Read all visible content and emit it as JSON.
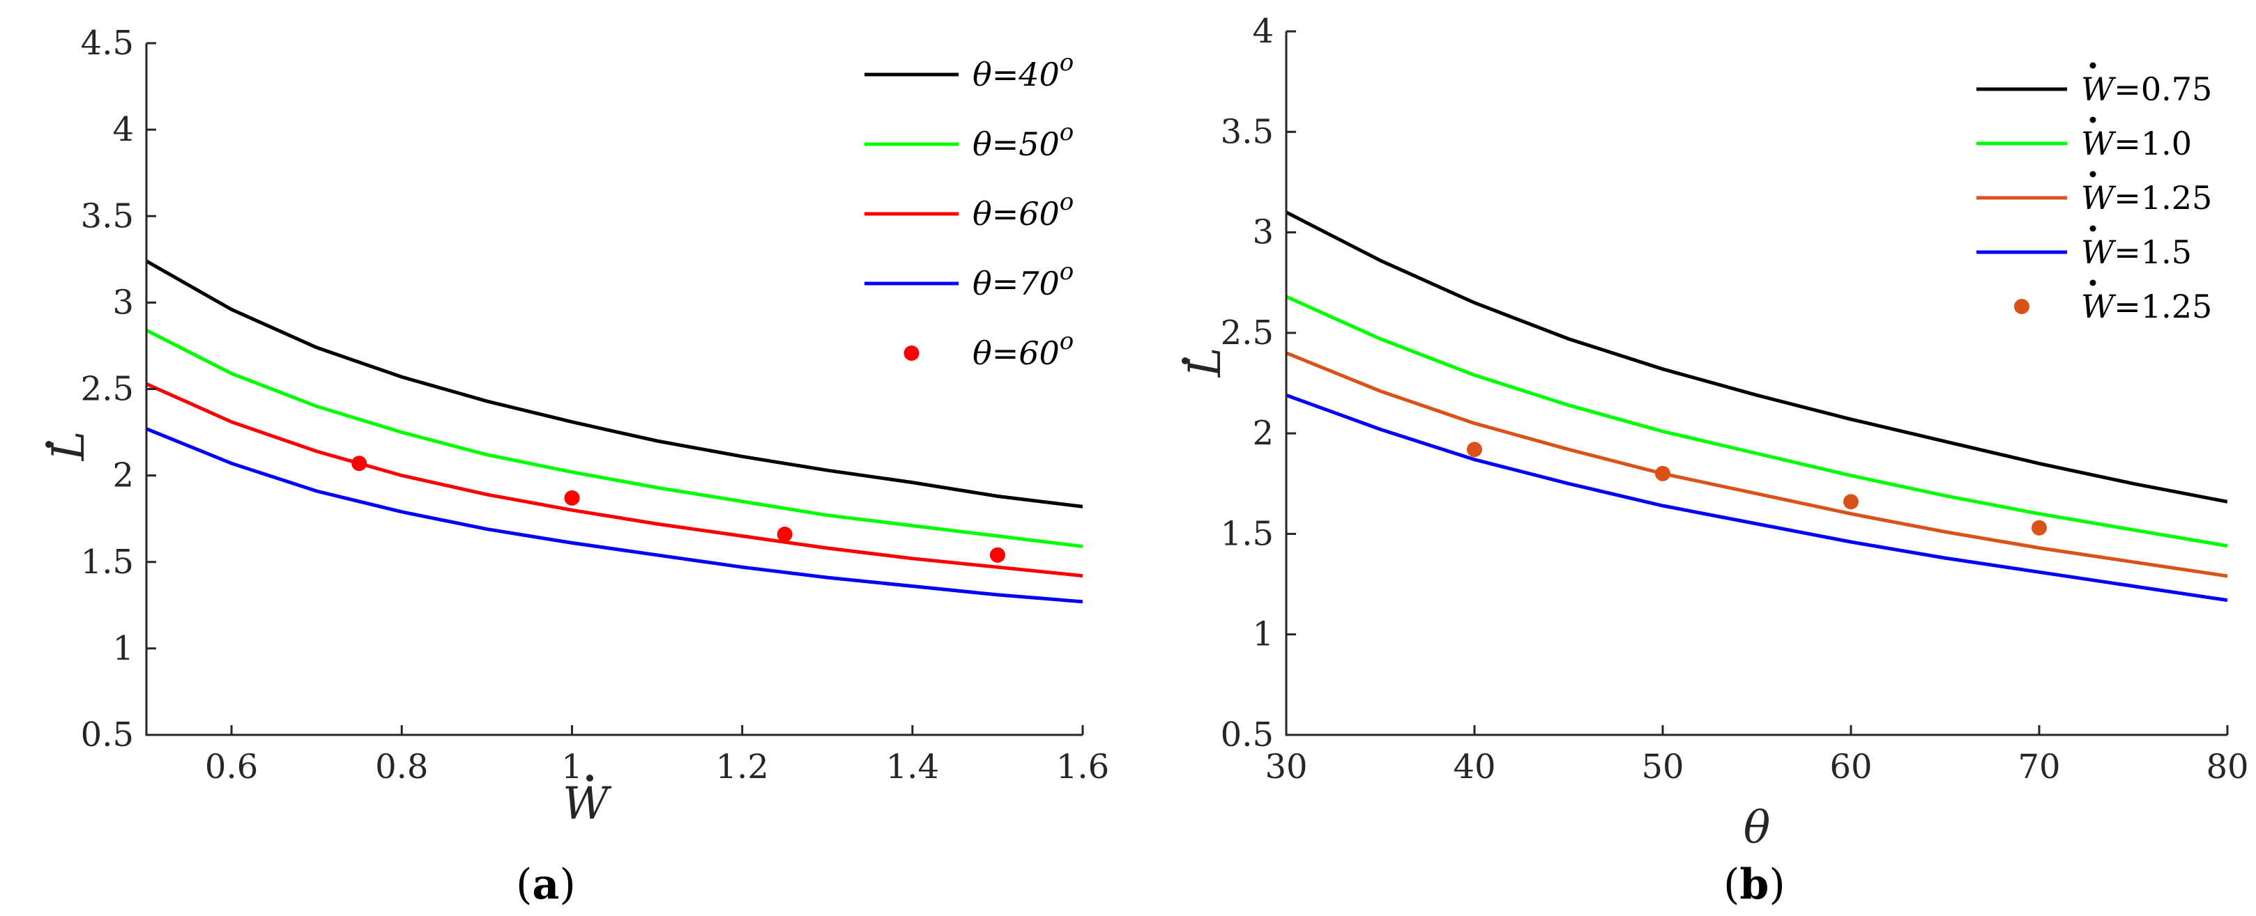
{
  "chart_data": [
    {
      "id": "a",
      "type": "line",
      "caption_letter": "a",
      "xlabel": "W",
      "ylabel": "L",
      "xlim": [
        0.5,
        1.6
      ],
      "ylim": [
        0.5,
        4.5
      ],
      "xticks": [
        0.6,
        0.8,
        1,
        1.2,
        1.4,
        1.6
      ],
      "xtick_labels": [
        "0.6",
        "0.8",
        "1",
        "1.2",
        "1.4",
        "1.6"
      ],
      "yticks": [
        0.5,
        1,
        1.5,
        2,
        2.5,
        3,
        3.5,
        4,
        4.5
      ],
      "ytick_labels": [
        "0.5",
        "1",
        "1.5",
        "2",
        "2.5",
        "3",
        "3.5",
        "4",
        "4.5"
      ],
      "legend_position": "top-right",
      "series": [
        {
          "name": "θ=40",
          "label_var": "θ",
          "label_value": "=40",
          "label_sup": "o",
          "color": "#000000",
          "kind": "line",
          "x": [
            0.5,
            0.6,
            0.7,
            0.8,
            0.9,
            1.0,
            1.1,
            1.2,
            1.3,
            1.4,
            1.5,
            1.6
          ],
          "y": [
            3.24,
            2.96,
            2.74,
            2.57,
            2.43,
            2.31,
            2.2,
            2.11,
            2.03,
            1.96,
            1.88,
            1.82
          ]
        },
        {
          "name": "θ=50",
          "label_var": "θ",
          "label_value": "=50",
          "label_sup": "o",
          "color": "#00ff00",
          "kind": "line",
          "x": [
            0.5,
            0.6,
            0.7,
            0.8,
            0.9,
            1.0,
            1.1,
            1.2,
            1.3,
            1.4,
            1.5,
            1.6
          ],
          "y": [
            2.84,
            2.59,
            2.4,
            2.25,
            2.12,
            2.02,
            1.93,
            1.85,
            1.77,
            1.71,
            1.65,
            1.59
          ]
        },
        {
          "name": "θ=60",
          "label_var": "θ",
          "label_value": "=60",
          "label_sup": "o",
          "color": "#ff0000",
          "kind": "line",
          "x": [
            0.5,
            0.6,
            0.7,
            0.8,
            0.9,
            1.0,
            1.1,
            1.2,
            1.3,
            1.4,
            1.5,
            1.6
          ],
          "y": [
            2.53,
            2.31,
            2.14,
            2.0,
            1.89,
            1.8,
            1.72,
            1.65,
            1.58,
            1.52,
            1.47,
            1.42
          ]
        },
        {
          "name": "θ=70",
          "label_var": "θ",
          "label_value": "=70",
          "label_sup": "o",
          "color": "#0000ff",
          "kind": "line",
          "x": [
            0.5,
            0.6,
            0.7,
            0.8,
            0.9,
            1.0,
            1.1,
            1.2,
            1.3,
            1.4,
            1.5,
            1.6
          ],
          "y": [
            2.27,
            2.07,
            1.91,
            1.79,
            1.69,
            1.61,
            1.54,
            1.47,
            1.41,
            1.36,
            1.31,
            1.27
          ]
        },
        {
          "name": "θ=60",
          "label_var": "θ",
          "label_value": "=60",
          "label_sup": "o",
          "color": "#ff0000",
          "kind": "points",
          "x": [
            0.75,
            1.0,
            1.25,
            1.5
          ],
          "y": [
            2.07,
            1.87,
            1.66,
            1.54
          ]
        }
      ]
    },
    {
      "id": "b",
      "type": "line",
      "caption_letter": "b",
      "xlabel": "θ",
      "ylabel": "L",
      "xlim": [
        30,
        80
      ],
      "ylim": [
        0.5,
        4
      ],
      "xticks": [
        30,
        40,
        50,
        60,
        70,
        80
      ],
      "xtick_labels": [
        "30",
        "40",
        "50",
        "60",
        "70",
        "80"
      ],
      "yticks": [
        0.5,
        1,
        1.5,
        2,
        2.5,
        3,
        3.5,
        4
      ],
      "ytick_labels": [
        "0.5",
        "1",
        "1.5",
        "2",
        "2.5",
        "3",
        "3.5",
        "4"
      ],
      "legend_position": "top-right",
      "series": [
        {
          "name": "W=0.75",
          "label_var": "W",
          "label_value": "=0.75",
          "label_sup": "",
          "color": "#000000",
          "kind": "line",
          "x": [
            30,
            35,
            40,
            45,
            50,
            55,
            60,
            65,
            70,
            75,
            80
          ],
          "y": [
            3.1,
            2.86,
            2.65,
            2.47,
            2.32,
            2.19,
            2.07,
            1.96,
            1.85,
            1.75,
            1.66
          ]
        },
        {
          "name": "W=1.0",
          "label_var": "W",
          "label_value": "=1.0",
          "label_sup": "",
          "color": "#00ff00",
          "kind": "line",
          "x": [
            30,
            35,
            40,
            45,
            50,
            55,
            60,
            65,
            70,
            75,
            80
          ],
          "y": [
            2.68,
            2.47,
            2.29,
            2.14,
            2.01,
            1.9,
            1.79,
            1.69,
            1.6,
            1.52,
            1.44
          ]
        },
        {
          "name": "W=1.25",
          "label_var": "W",
          "label_value": "=1.25",
          "label_sup": "",
          "color": "#d95319",
          "kind": "line",
          "x": [
            30,
            35,
            40,
            45,
            50,
            55,
            60,
            65,
            70,
            75,
            80
          ],
          "y": [
            2.4,
            2.21,
            2.05,
            1.92,
            1.8,
            1.7,
            1.6,
            1.51,
            1.43,
            1.36,
            1.29
          ]
        },
        {
          "name": "W=1.5",
          "label_var": "W",
          "label_value": "=1.5",
          "label_sup": "",
          "color": "#0000ff",
          "kind": "line",
          "x": [
            30,
            35,
            40,
            45,
            50,
            55,
            60,
            65,
            70,
            75,
            80
          ],
          "y": [
            2.19,
            2.02,
            1.87,
            1.75,
            1.64,
            1.55,
            1.46,
            1.38,
            1.31,
            1.24,
            1.17
          ]
        },
        {
          "name": "W=1.25",
          "label_var": "W",
          "label_value": "=1.25",
          "label_sup": "",
          "color": "#d95319",
          "kind": "points",
          "x": [
            40,
            50,
            60,
            70
          ],
          "y": [
            1.92,
            1.8,
            1.66,
            1.53
          ]
        }
      ]
    }
  ]
}
